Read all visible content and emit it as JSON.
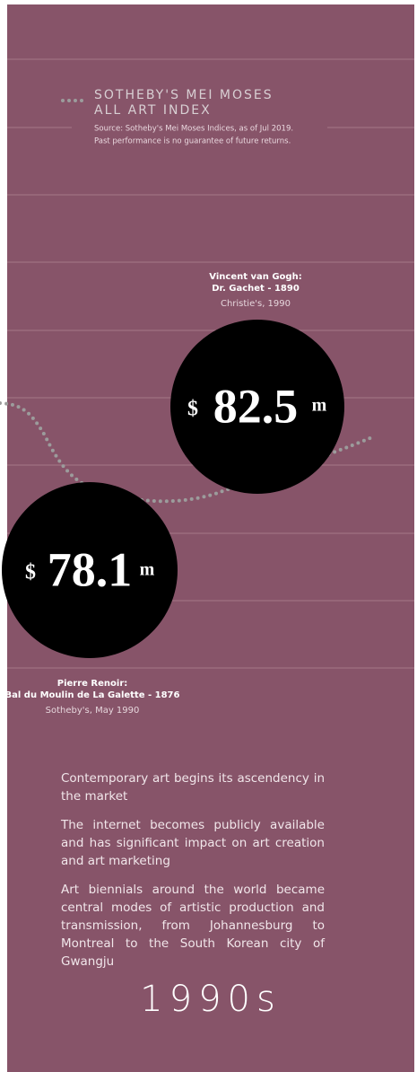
{
  "legend": {
    "title_lines": [
      "SOTHEBY'S MEI MOSES",
      "ALL ART INDEX"
    ],
    "source_lines": [
      "Source: Sotheby's Mei Moses Indices, as of Jul 2019.",
      "Past performance is no guarantee of future returns."
    ]
  },
  "sales": [
    {
      "currency": "$",
      "amount": "82.5",
      "unit": "m",
      "title_lines": [
        "Vincent van Gogh:",
        "Dr. Gachet - 1890"
      ],
      "venue": "Christie's, 1990"
    },
    {
      "currency": "$",
      "amount": "78.1",
      "unit": "m",
      "title_lines": [
        "Pierre Renoir:",
        "Bal du Moulin de La Galette - 1876"
      ],
      "venue": "Sotheby's, May 1990"
    }
  ],
  "paragraphs": [
    "Contemporary art begins its ascendency in the market",
    "The internet becomes publicly available and has significant impact on art creation and art marketing",
    "Art biennials around the world became central modes of artistic production and transmission, from Johannesburg to Montreal to the South Korean city of Gwangju"
  ],
  "decade": "1990s"
}
